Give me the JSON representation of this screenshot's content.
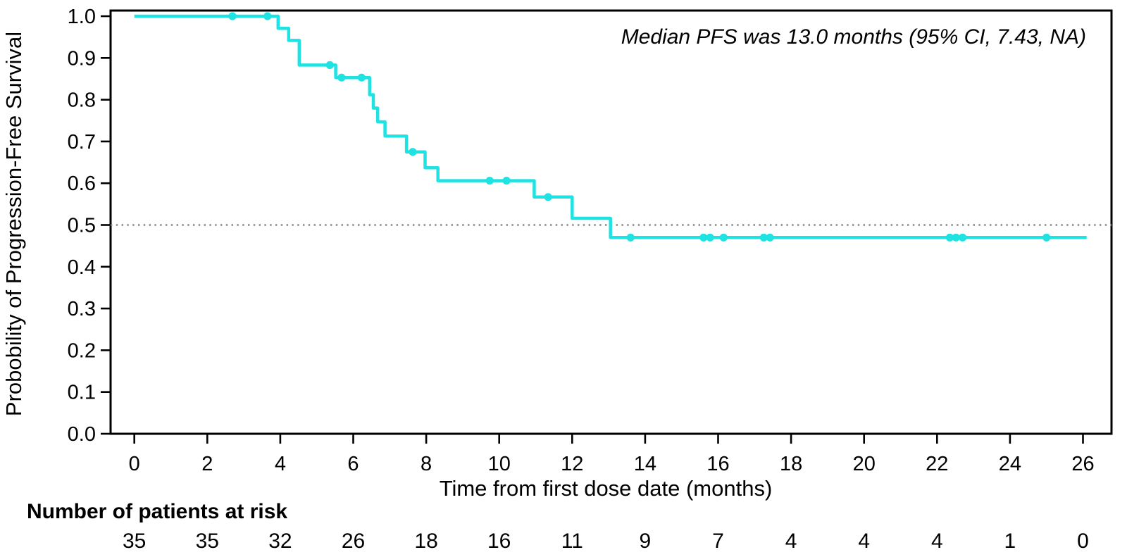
{
  "chart_data": {
    "type": "line",
    "subtype": "kaplan-meier-step-curve",
    "annotation": "Median PFS was 13.0 months (95% CI, 7.43, NA)",
    "xlabel": "Time from first dose date (months)",
    "ylabel": "Probobility of Progression-Free Survival",
    "xlim": [
      0,
      26
    ],
    "ylim": [
      0.0,
      1.0
    ],
    "x_ticks": [
      0,
      2,
      4,
      6,
      8,
      10,
      12,
      14,
      16,
      18,
      20,
      22,
      24,
      26
    ],
    "y_ticks": [
      1.0,
      0.9,
      0.8,
      0.7,
      0.6,
      0.5,
      0.4,
      0.3,
      0.2,
      0.1,
      0.0
    ],
    "y_tick_labels": [
      "1.0",
      "0.9",
      "0.8",
      "0.7",
      "0.6",
      "0.5",
      "0.4",
      "0.3",
      "0.2",
      "0.1",
      "0.0"
    ],
    "grid": "off",
    "legend": "none",
    "frame": "full-box",
    "reference_line": {
      "y": 0.5,
      "style": "dotted",
      "color": "#858585"
    },
    "series": [
      {
        "name": "Progression-Free Survival",
        "color": "#1FE2E2",
        "line_width": 4.5,
        "steps": [
          {
            "t": 0.0,
            "s": 1.0
          },
          {
            "t": 3.94,
            "s": 0.971
          },
          {
            "t": 4.23,
            "s": 0.942
          },
          {
            "t": 4.52,
            "s": 0.883
          },
          {
            "t": 5.52,
            "s": 0.853
          },
          {
            "t": 6.45,
            "s": 0.812
          },
          {
            "t": 6.55,
            "s": 0.78
          },
          {
            "t": 6.67,
            "s": 0.747
          },
          {
            "t": 6.87,
            "s": 0.713
          },
          {
            "t": 7.46,
            "s": 0.675
          },
          {
            "t": 7.97,
            "s": 0.637
          },
          {
            "t": 8.32,
            "s": 0.606
          },
          {
            "t": 10.96,
            "s": 0.567
          },
          {
            "t": 12.0,
            "s": 0.516
          },
          {
            "t": 13.05,
            "s": 0.47
          }
        ],
        "end_time": 26.1,
        "censor_marks": [
          {
            "t": 2.69,
            "s": 1.0
          },
          {
            "t": 3.65,
            "s": 1.0
          },
          {
            "t": 5.36,
            "s": 0.883
          },
          {
            "t": 5.68,
            "s": 0.853
          },
          {
            "t": 6.23,
            "s": 0.853
          },
          {
            "t": 7.63,
            "s": 0.675
          },
          {
            "t": 9.74,
            "s": 0.606
          },
          {
            "t": 10.2,
            "s": 0.606
          },
          {
            "t": 11.34,
            "s": 0.567
          },
          {
            "t": 13.6,
            "s": 0.47
          },
          {
            "t": 15.6,
            "s": 0.47
          },
          {
            "t": 15.78,
            "s": 0.47
          },
          {
            "t": 16.15,
            "s": 0.47
          },
          {
            "t": 17.25,
            "s": 0.47
          },
          {
            "t": 17.42,
            "s": 0.47
          },
          {
            "t": 22.35,
            "s": 0.47
          },
          {
            "t": 22.52,
            "s": 0.47
          },
          {
            "t": 22.7,
            "s": 0.47
          },
          {
            "t": 25.0,
            "s": 0.47
          }
        ]
      }
    ],
    "risk_table": {
      "title": "Number of patients at risk",
      "times": [
        0,
        2,
        4,
        6,
        8,
        10,
        12,
        14,
        16,
        18,
        20,
        22,
        24,
        26
      ],
      "counts": [
        35,
        35,
        32,
        26,
        18,
        16,
        11,
        9,
        7,
        4,
        4,
        4,
        1,
        0
      ]
    }
  }
}
